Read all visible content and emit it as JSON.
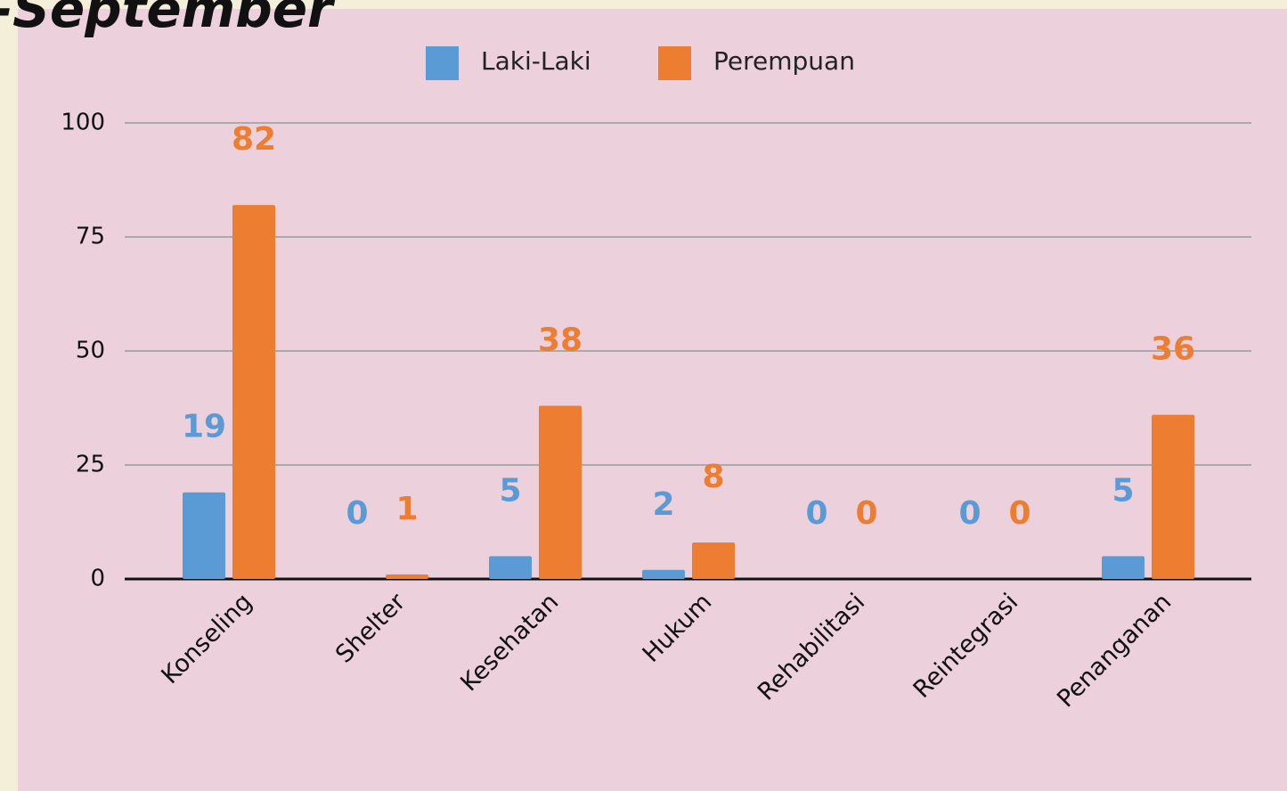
{
  "chart_data": {
    "type": "bar",
    "title": "-September",
    "categories": [
      "Konseling",
      "Shelter",
      "Kesehatan",
      "Hukum",
      "Rehabilitasi",
      "Reintegrasi",
      "Penanganan"
    ],
    "series": [
      {
        "name": "Laki-Laki",
        "color": "#5b9bd5",
        "values": [
          19,
          0,
          5,
          2,
          0,
          0,
          5
        ]
      },
      {
        "name": "Perempuan",
        "color": "#ed7d31",
        "values": [
          82,
          1,
          38,
          8,
          0,
          0,
          36
        ]
      }
    ],
    "ylim": [
      0,
      100
    ],
    "yticks": [
      0,
      25,
      50,
      75,
      100
    ],
    "grid": true,
    "legend": "top"
  }
}
